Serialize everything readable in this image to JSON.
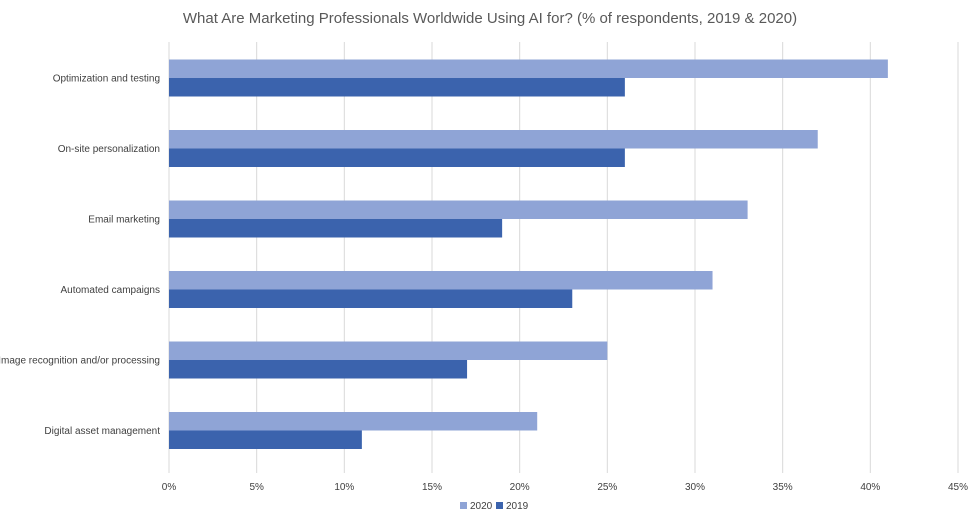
{
  "chart_data": {
    "type": "bar",
    "orientation": "horizontal",
    "title": "What Are Marketing Professionals Worldwide Using AI for? (% of respondents, 2019 & 2020)",
    "categories": [
      "Optimization and testing",
      "On-site personalization",
      "Email marketing",
      "Automated campaigns",
      "Image recognition and/or processing",
      "Digital asset management"
    ],
    "series": [
      {
        "name": "2020",
        "color": "#8fa4d6",
        "values": [
          41,
          37,
          33,
          31,
          25,
          21
        ]
      },
      {
        "name": "2019",
        "color": "#3b63ad",
        "values": [
          26,
          26,
          19,
          23,
          17,
          11
        ]
      }
    ],
    "x_ticks": [
      "0%",
      "5%",
      "10%",
      "15%",
      "20%",
      "25%",
      "30%",
      "35%",
      "40%",
      "45%"
    ],
    "xlim": [
      0,
      45
    ],
    "grid": true,
    "legend_position": "bottom"
  }
}
